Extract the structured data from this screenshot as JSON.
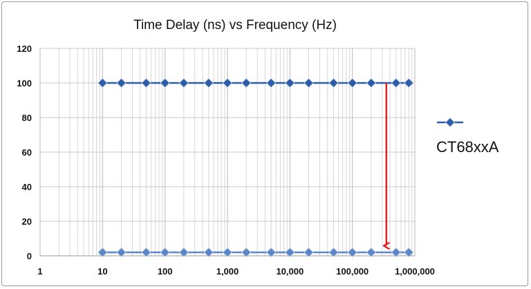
{
  "chart_data": {
    "type": "line",
    "title": "Time Delay (ns) vs Frequency (Hz)",
    "xlabel": "",
    "ylabel": "",
    "x_scale": "log",
    "xlim": [
      1,
      1000000
    ],
    "ylim": [
      0,
      120
    ],
    "grid": true,
    "legend_position": "right",
    "x_tick_labels": [
      "1",
      "10",
      "100",
      "1,000",
      "10,000",
      "100,000",
      "1,000,000"
    ],
    "y_tick_labels": [
      "0",
      "20",
      "40",
      "60",
      "80",
      "100",
      "120"
    ],
    "series": [
      {
        "name": "CT68xxA",
        "color": "#2e5da8",
        "marker": "diamond",
        "x": [
          10,
          20,
          50,
          100,
          200,
          500,
          1000,
          2000,
          5000,
          10000,
          20000,
          50000,
          100000,
          200000,
          500000,
          800000
        ],
        "y": [
          100,
          100,
          100,
          100,
          100,
          100,
          100,
          100,
          100,
          100,
          100,
          100,
          100,
          100,
          100,
          100
        ]
      },
      {
        "color": "#5b86c8",
        "marker": "diamond",
        "x": [
          10,
          20,
          50,
          100,
          200,
          500,
          1000,
          2000,
          5000,
          10000,
          20000,
          50000,
          100000,
          200000,
          500000,
          800000
        ],
        "y": [
          2,
          2,
          2,
          2,
          2,
          2,
          2,
          2,
          2,
          2,
          2,
          2,
          2,
          2,
          2,
          2
        ]
      }
    ],
    "annotations": [
      {
        "type": "arrow",
        "color": "#e02020",
        "x": 350000,
        "y_from": 100,
        "y_to": 5
      }
    ]
  }
}
